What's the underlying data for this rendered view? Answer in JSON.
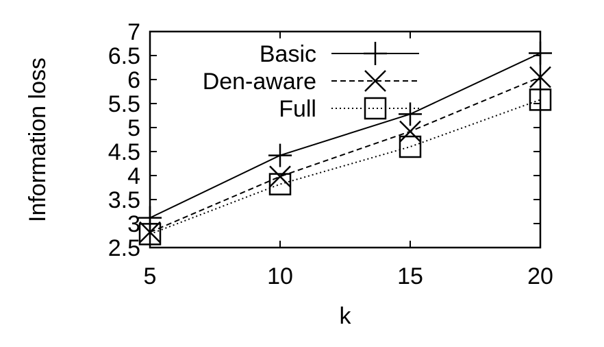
{
  "chart_data": {
    "type": "line",
    "title": "",
    "xlabel": "k",
    "ylabel": "Information loss",
    "x": [
      5,
      10,
      15,
      20
    ],
    "xlim": [
      5,
      20
    ],
    "ylim": [
      2.5,
      7
    ],
    "xticks": [
      "5",
      "10",
      "15",
      "20"
    ],
    "yticks": [
      "2.5",
      "3",
      "3.5",
      "4",
      "4.5",
      "5",
      "5.5",
      "6",
      "6.5",
      "7"
    ],
    "grid": false,
    "legend_position": "top-left inside",
    "series": [
      {
        "name": "Basic",
        "values": [
          3.12,
          4.42,
          5.28,
          6.55
        ],
        "line": "solid",
        "marker": "plus"
      },
      {
        "name": "Den-aware",
        "values": [
          2.82,
          3.98,
          4.92,
          6.05
        ],
        "line": "dashed",
        "marker": "x"
      },
      {
        "name": "Full",
        "values": [
          2.78,
          3.82,
          4.6,
          5.58
        ],
        "line": "dotted",
        "marker": "square"
      }
    ]
  }
}
